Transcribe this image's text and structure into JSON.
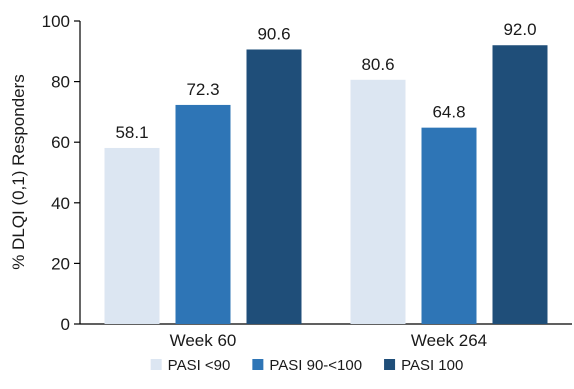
{
  "chart_data": {
    "type": "bar",
    "categories": [
      "Week 60",
      "Week 264"
    ],
    "series": [
      {
        "name": "PASI <90",
        "color": "#dce6f2",
        "values": [
          58.1,
          80.6
        ],
        "labels": [
          "58.1",
          "80.6"
        ]
      },
      {
        "name": "PASI 90-<100",
        "color": "#2e75b6",
        "values": [
          72.3,
          64.8
        ],
        "labels": [
          "72.3",
          "64.8"
        ]
      },
      {
        "name": "PASI 100",
        "color": "#1f4e79",
        "values": [
          90.6,
          92.0
        ],
        "labels": [
          "90.6",
          "92.0"
        ]
      }
    ],
    "ylabel": "% DLQI (0,1) Responders",
    "xlabel": "",
    "ylim": [
      0,
      100
    ],
    "yticks": [
      0,
      20,
      40,
      60,
      80,
      100
    ],
    "grid": false,
    "legend_position": "bottom"
  }
}
